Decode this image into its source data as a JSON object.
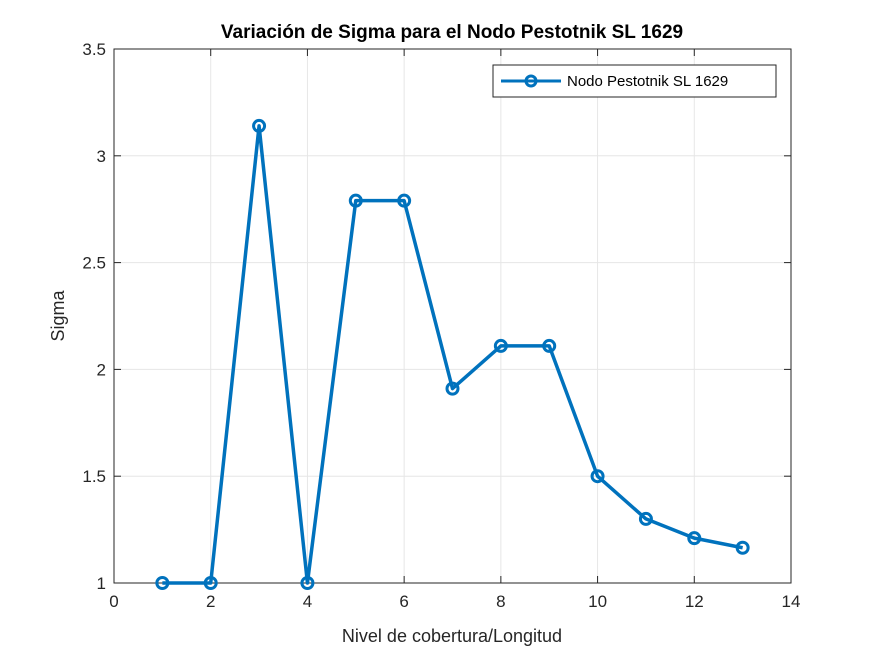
{
  "chart_data": {
    "type": "line",
    "title": "Variación de Sigma para el Nodo Pestotnik SL 1629",
    "xlabel": "Nivel de cobertura/Longitud",
    "ylabel": "Sigma",
    "xlim": [
      0,
      14
    ],
    "ylim": [
      1,
      3.5
    ],
    "xticks": [
      0,
      2,
      4,
      6,
      8,
      10,
      12,
      14
    ],
    "yticks": [
      1,
      1.5,
      2,
      2.5,
      3,
      3.5
    ],
    "xtick_labels": [
      "0",
      "2",
      "4",
      "6",
      "8",
      "10",
      "12",
      "14"
    ],
    "ytick_labels": [
      "1",
      "1.5",
      "2",
      "2.5",
      "3",
      "3.5"
    ],
    "grid": true,
    "legend_position": "top-right",
    "series": [
      {
        "name": "Nodo Pestotnik SL 1629",
        "color": "#0072BD",
        "marker": "circle",
        "x": [
          1,
          2,
          3,
          4,
          5,
          6,
          7,
          8,
          9,
          10,
          11,
          12,
          13
        ],
        "y": [
          1.0,
          1.0,
          3.14,
          1.0,
          2.79,
          2.79,
          1.91,
          2.11,
          2.11,
          1.5,
          1.3,
          1.21,
          1.165
        ]
      }
    ]
  }
}
